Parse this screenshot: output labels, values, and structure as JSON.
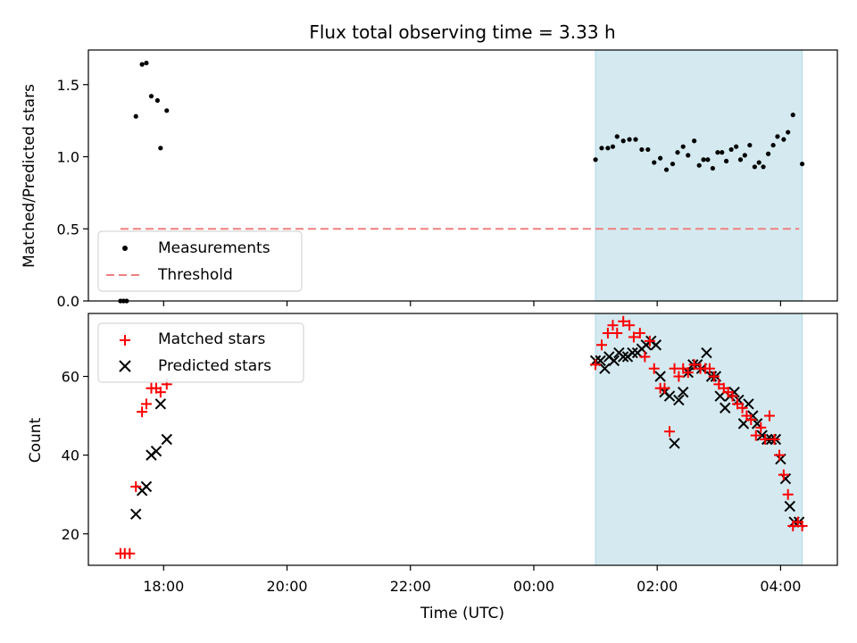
{
  "chart_data": {
    "type": "scatter",
    "title": "Flux total observing time = 3.33 h",
    "xlabel": "Time (UTC)",
    "x_ticks": [
      "18:00",
      "20:00",
      "22:00",
      "00:00",
      "02:00",
      "04:00"
    ],
    "x_tick_hours": [
      18,
      20,
      22,
      24,
      26,
      28
    ],
    "xlim_hours": [
      16.78,
      28.92
    ],
    "shaded_span_hours": [
      25.0,
      28.35
    ],
    "shade_color": "#d4eaf0",
    "panels": [
      {
        "ylabel": "Matched/Predicted stars",
        "ylim": [
          0,
          1.74
        ],
        "y_ticks": [
          0.0,
          0.5,
          1.0,
          1.5
        ],
        "y_tick_labels": [
          "0.0",
          "0.5",
          "1.0",
          "1.5"
        ],
        "threshold": {
          "name": "Threshold",
          "value": 0.5,
          "x_range": [
            17.3,
            28.3
          ],
          "color": "#f08080"
        },
        "series": [
          {
            "name": "Measurements",
            "marker": "dot",
            "color": "#000000",
            "x": [
              17.3,
              17.35,
              17.4,
              17.55,
              17.65,
              17.72,
              17.8,
              17.9,
              17.95,
              18.05,
              25.0,
              25.1,
              25.2,
              25.28,
              25.35,
              25.45,
              25.55,
              25.65,
              25.75,
              25.85,
              25.95,
              26.05,
              26.15,
              26.25,
              26.33,
              26.42,
              26.5,
              26.6,
              26.68,
              26.75,
              26.82,
              26.9,
              26.98,
              27.05,
              27.12,
              27.2,
              27.28,
              27.35,
              27.42,
              27.5,
              27.58,
              27.65,
              27.72,
              27.8,
              27.88,
              27.95,
              28.05,
              28.12,
              28.2,
              28.35
            ],
            "y": [
              0.0,
              0.0,
              0.0,
              1.28,
              1.64,
              1.65,
              1.42,
              1.39,
              1.06,
              1.32,
              0.98,
              1.06,
              1.06,
              1.07,
              1.14,
              1.11,
              1.12,
              1.12,
              1.05,
              1.05,
              0.96,
              0.99,
              0.91,
              0.95,
              1.03,
              1.07,
              1.01,
              1.11,
              0.94,
              0.98,
              0.98,
              0.92,
              1.03,
              1.03,
              0.97,
              1.05,
              1.07,
              0.98,
              1.01,
              1.08,
              0.93,
              0.96,
              0.93,
              1.02,
              1.08,
              1.14,
              1.12,
              1.17,
              1.29,
              0.95
            ]
          }
        ]
      },
      {
        "ylabel": "Count",
        "ylim": [
          12,
          76
        ],
        "y_ticks": [
          20,
          40,
          60
        ],
        "y_tick_labels": [
          "20",
          "40",
          "60"
        ],
        "series": [
          {
            "name": "Matched stars",
            "marker": "plus",
            "color": "#ff0000",
            "x": [
              17.3,
              17.37,
              17.45,
              17.55,
              17.65,
              17.72,
              17.8,
              17.88,
              17.95,
              18.05,
              25.0,
              25.1,
              25.2,
              25.28,
              25.35,
              25.45,
              25.55,
              25.62,
              25.72,
              25.8,
              25.88,
              25.95,
              26.05,
              26.12,
              26.2,
              26.28,
              26.35,
              26.42,
              26.5,
              26.6,
              26.7,
              26.78,
              26.85,
              26.92,
              27.0,
              27.08,
              27.15,
              27.22,
              27.3,
              27.38,
              27.45,
              27.52,
              27.6,
              27.68,
              27.75,
              27.82,
              27.9,
              27.98,
              28.05,
              28.12,
              28.2,
              28.28,
              28.35
            ],
            "y": [
              15,
              15,
              15,
              32,
              51,
              53,
              57,
              57,
              56,
              58,
              63,
              68,
              71,
              73,
              71,
              74,
              73,
              70,
              71,
              65,
              69,
              62,
              57,
              57,
              46,
              62,
              60,
              62,
              61,
              63,
              62,
              62,
              62,
              60,
              58,
              57,
              56,
              55,
              53,
              52,
              50,
              49,
              45,
              47,
              44,
              50,
              44,
              40,
              35,
              30,
              22,
              23,
              22
            ]
          },
          {
            "name": "Predicted stars",
            "marker": "x",
            "color": "#000000",
            "x": [
              17.55,
              17.65,
              17.72,
              17.8,
              17.88,
              17.95,
              18.05,
              25.0,
              25.08,
              25.15,
              25.22,
              25.3,
              25.38,
              25.45,
              25.52,
              25.6,
              25.68,
              25.75,
              25.82,
              25.9,
              25.98,
              26.05,
              26.12,
              26.2,
              26.28,
              26.35,
              26.42,
              26.5,
              26.58,
              26.65,
              26.72,
              26.8,
              26.88,
              26.95,
              27.02,
              27.1,
              27.18,
              27.25,
              27.32,
              27.4,
              27.48,
              27.55,
              27.62,
              27.7,
              27.78,
              27.85,
              27.92,
              28.0,
              28.08,
              28.15,
              28.22,
              28.3
            ],
            "y": [
              25,
              31,
              32,
              40,
              41,
              53,
              44,
              64,
              64,
              62,
              65,
              64,
              66,
              65,
              65,
              66,
              66,
              67,
              68,
              69,
              68,
              60,
              56,
              55,
              43,
              54,
              56,
              61,
              63,
              63,
              62,
              66,
              60,
              60,
              55,
              52,
              55,
              56,
              54,
              48,
              53,
              50,
              48,
              45,
              44,
              44,
              44,
              39,
              34,
              27,
              23,
              23
            ]
          }
        ]
      }
    ]
  }
}
